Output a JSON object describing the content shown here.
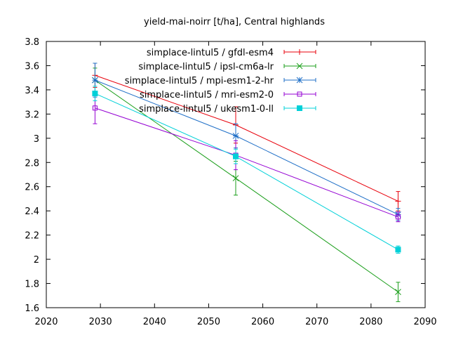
{
  "chart_data": {
    "type": "line",
    "title": "yield-mai-noirr [t/ha], Central highlands",
    "xlabel": "",
    "ylabel": "",
    "xlim": [
      2020,
      2090
    ],
    "ylim": [
      1.6,
      3.8
    ],
    "x_ticks": [
      2020,
      2030,
      2040,
      2050,
      2060,
      2070,
      2080,
      2090
    ],
    "y_ticks": [
      1.6,
      1.8,
      2,
      2.2,
      2.4,
      2.6,
      2.8,
      3,
      3.2,
      3.4,
      3.6,
      3.8
    ],
    "grid": false,
    "legend_position": "top-right",
    "error_bars": true,
    "series": [
      {
        "name": "simplace-lintul5 / gfdl-esm4",
        "color": "#e8000b",
        "marker": "plus",
        "x": [
          2029,
          2055,
          2085
        ],
        "y": [
          3.52,
          3.11,
          2.48
        ],
        "err": [
          0.1,
          0.15,
          0.08
        ]
      },
      {
        "name": "simplace-lintul5 / ipsl-cm6a-lr",
        "color": "#1a9e1a",
        "marker": "cross",
        "x": [
          2029,
          2055,
          2085
        ],
        "y": [
          3.48,
          2.67,
          1.73
        ],
        "err": [
          0.1,
          0.14,
          0.08
        ]
      },
      {
        "name": "simplace-lintul5 / mpi-esm1-2-hr",
        "color": "#1f6fc7",
        "marker": "star",
        "x": [
          2029,
          2055,
          2085
        ],
        "y": [
          3.48,
          3.02,
          2.37
        ],
        "err": [
          0.14,
          0.1,
          0.05
        ]
      },
      {
        "name": "simplace-lintul5 / mri-esm2-0",
        "color": "#9400d3",
        "marker": "square",
        "x": [
          2029,
          2055,
          2085
        ],
        "y": [
          3.25,
          2.86,
          2.35
        ],
        "err": [
          0.13,
          0.12,
          0.04
        ]
      },
      {
        "name": "simplace-lintul5 / ukesm1-0-ll",
        "color": "#00d0d8",
        "marker": "filled-square",
        "x": [
          2029,
          2055,
          2085
        ],
        "y": [
          3.37,
          2.85,
          2.08
        ],
        "err": [
          0.06,
          0.06,
          0.03
        ]
      }
    ]
  }
}
